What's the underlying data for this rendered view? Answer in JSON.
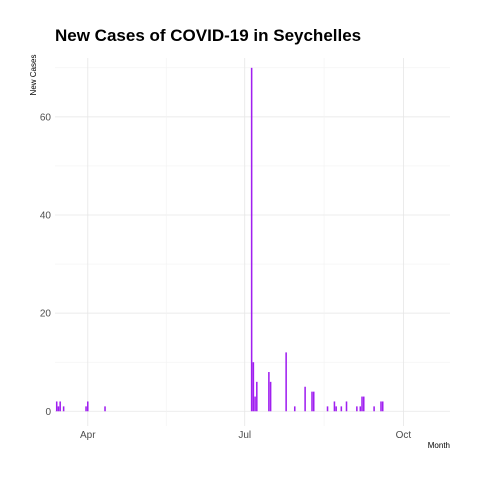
{
  "chart_data": {
    "type": "bar",
    "title": "New Cases of COVID-19 in Seychelles",
    "xlabel": "Month",
    "ylabel": "New Cases",
    "x_axis": {
      "start": "2020-03-14",
      "end": "2020-10-27",
      "ticks": [
        {
          "label": "Apr",
          "date": "2020-04-01"
        },
        {
          "label": "Jul",
          "date": "2020-07-01"
        },
        {
          "label": "Oct",
          "date": "2020-10-01"
        }
      ]
    },
    "ylim": [
      -3,
      72
    ],
    "y_ticks": [
      0,
      20,
      40,
      60
    ],
    "grid": true,
    "bar_color": "#a020f0",
    "points": [
      {
        "date": "2020-03-14",
        "value": 2
      },
      {
        "date": "2020-03-15",
        "value": 1
      },
      {
        "date": "2020-03-16",
        "value": 2
      },
      {
        "date": "2020-03-18",
        "value": 1
      },
      {
        "date": "2020-03-31",
        "value": 1
      },
      {
        "date": "2020-04-01",
        "value": 2
      },
      {
        "date": "2020-04-11",
        "value": 1
      },
      {
        "date": "2020-07-05",
        "value": 70
      },
      {
        "date": "2020-07-06",
        "value": 10
      },
      {
        "date": "2020-07-07",
        "value": 3
      },
      {
        "date": "2020-07-08",
        "value": 6
      },
      {
        "date": "2020-07-15",
        "value": 8
      },
      {
        "date": "2020-07-16",
        "value": 6
      },
      {
        "date": "2020-07-25",
        "value": 12
      },
      {
        "date": "2020-07-30",
        "value": 1
      },
      {
        "date": "2020-08-05",
        "value": 5
      },
      {
        "date": "2020-08-09",
        "value": 4
      },
      {
        "date": "2020-08-10",
        "value": 4
      },
      {
        "date": "2020-08-18",
        "value": 1
      },
      {
        "date": "2020-08-22",
        "value": 2
      },
      {
        "date": "2020-08-23",
        "value": 1
      },
      {
        "date": "2020-08-26",
        "value": 1
      },
      {
        "date": "2020-08-29",
        "value": 2
      },
      {
        "date": "2020-09-04",
        "value": 1
      },
      {
        "date": "2020-09-06",
        "value": 1
      },
      {
        "date": "2020-09-07",
        "value": 3
      },
      {
        "date": "2020-09-08",
        "value": 3
      },
      {
        "date": "2020-09-14",
        "value": 1
      },
      {
        "date": "2020-09-18",
        "value": 2
      },
      {
        "date": "2020-09-19",
        "value": 2
      }
    ]
  }
}
